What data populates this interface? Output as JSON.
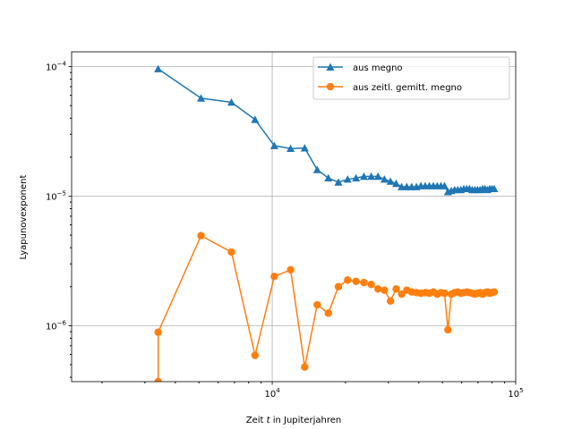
{
  "chart_data": {
    "type": "line",
    "xlabel_pre": "Zeit ",
    "xlabel_var": "t",
    "xlabel_post": " in Jupiterjahren",
    "ylabel": "Lyapunovexponent",
    "xscale": "log",
    "yscale": "log",
    "xlim": [
      1500,
      100000
    ],
    "ylim": [
      3.7e-07,
      0.00013
    ],
    "grid": true,
    "legend_position": "top-right",
    "x_ticks": [
      {
        "value": 10000,
        "base": "10",
        "exp": "4"
      },
      {
        "value": 100000,
        "base": "10",
        "exp": "5"
      }
    ],
    "y_ticks": [
      {
        "value": 1e-06,
        "base": "10",
        "exp": "−6"
      },
      {
        "value": 1e-05,
        "base": "10",
        "exp": "−5"
      },
      {
        "value": 0.0001,
        "base": "10",
        "exp": "−4"
      }
    ],
    "series": [
      {
        "name": "aus megno",
        "color": "#1f77b4",
        "marker": "triangle",
        "x": [
          3400,
          5100,
          6800,
          8500,
          10200,
          11900,
          13600,
          15300,
          17000,
          18700,
          20400,
          22100,
          23800,
          25500,
          27200,
          28900,
          30600,
          32300,
          34000,
          35700,
          37400,
          39100,
          40800,
          42500,
          44200,
          45900,
          47600,
          49300,
          51000,
          52700,
          54400,
          56100,
          57800,
          59500,
          61200,
          62900,
          64600,
          66300,
          68000,
          69700,
          71400,
          73100,
          74800,
          76500,
          78200,
          79900,
          81600
        ],
        "values": [
          9.6e-05,
          5.7e-05,
          5.3e-05,
          3.9e-05,
          2.45e-05,
          2.33e-05,
          2.35e-05,
          1.6e-05,
          1.38e-05,
          1.28e-05,
          1.35e-05,
          1.38e-05,
          1.42e-05,
          1.42e-05,
          1.42e-05,
          1.35e-05,
          1.3e-05,
          1.25e-05,
          1.18e-05,
          1.18e-05,
          1.18e-05,
          1.18e-05,
          1.2e-05,
          1.2e-05,
          1.2e-05,
          1.2e-05,
          1.2e-05,
          1.2e-05,
          1.2e-05,
          1.08e-05,
          1.1e-05,
          1.12e-05,
          1.12e-05,
          1.12e-05,
          1.14e-05,
          1.14e-05,
          1.14e-05,
          1.12e-05,
          1.12e-05,
          1.12e-05,
          1.12e-05,
          1.14e-05,
          1.14e-05,
          1.12e-05,
          1.14e-05,
          1.14e-05,
          1.14e-05
        ]
      },
      {
        "name": "aus zeitl. gemitt. megno",
        "color": "#ff7f0e",
        "marker": "circle",
        "x": [
          3400,
          3400,
          5100,
          6800,
          8500,
          10200,
          11900,
          13600,
          15300,
          17000,
          18700,
          20400,
          22100,
          23800,
          25500,
          27200,
          28900,
          30600,
          32300,
          34000,
          35700,
          37400,
          39100,
          40800,
          42500,
          44200,
          45900,
          47600,
          49300,
          51000,
          52700,
          54400,
          56100,
          57800,
          59500,
          61200,
          62900,
          64600,
          66300,
          68000,
          69700,
          71400,
          73100,
          74800,
          76500,
          78200,
          79900,
          81600
        ],
        "values": [
          3.7e-07,
          8.9e-07,
          4.95e-06,
          3.7e-06,
          5.9e-07,
          2.4e-06,
          2.7e-06,
          4.8e-07,
          1.45e-06,
          1.25e-06,
          2e-06,
          2.25e-06,
          2.2e-06,
          2.15e-06,
          2.08e-06,
          1.92e-06,
          1.88e-06,
          1.55e-06,
          1.92e-06,
          1.75e-06,
          1.88e-06,
          1.82e-06,
          1.8e-06,
          1.78e-06,
          1.8e-06,
          1.78e-06,
          1.82e-06,
          1.75e-06,
          1.8e-06,
          1.78e-06,
          9.3e-07,
          1.75e-06,
          1.8e-06,
          1.82e-06,
          1.78e-06,
          1.8e-06,
          1.82e-06,
          1.8e-06,
          1.78e-06,
          1.75e-06,
          1.78e-06,
          1.8e-06,
          1.75e-06,
          1.8e-06,
          1.82e-06,
          1.78e-06,
          1.8e-06,
          1.82e-06
        ]
      }
    ]
  }
}
